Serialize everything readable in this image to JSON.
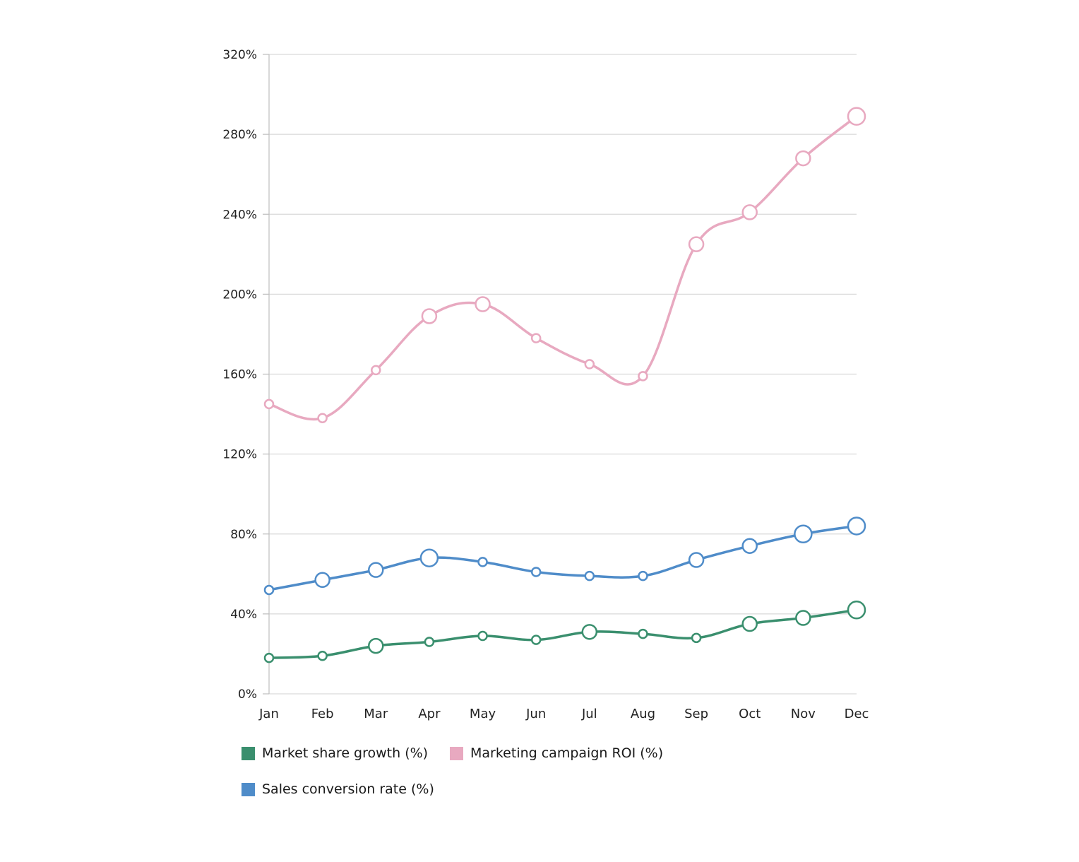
{
  "chart_data": {
    "type": "line",
    "title": "",
    "xlabel": "",
    "ylabel": "",
    "categories": [
      "Jan",
      "Feb",
      "Mar",
      "Apr",
      "May",
      "Jun",
      "Jul",
      "Aug",
      "Sep",
      "Oct",
      "Nov",
      "Dec"
    ],
    "ylim": [
      0,
      320
    ],
    "yticks": [
      0,
      40,
      80,
      120,
      160,
      200,
      240,
      280,
      320
    ],
    "ytick_labels": [
      "0%",
      "40%",
      "80%",
      "120%",
      "160%",
      "200%",
      "240%",
      "280%",
      "320%"
    ],
    "grid": true,
    "legend_position": "bottom-left",
    "series": [
      {
        "name": "Market share growth (%)",
        "color": "#3a8f6e",
        "values": [
          18,
          19,
          24,
          26,
          29,
          27,
          31,
          30,
          28,
          35,
          38,
          42
        ],
        "marker_emphasis": [
          0,
          0,
          1,
          0,
          0,
          0,
          1,
          0,
          0,
          1,
          1,
          2
        ]
      },
      {
        "name": "Marketing campaign ROI (%)",
        "color": "#e8a9c0",
        "values": [
          145,
          138,
          162,
          189,
          195,
          178,
          165,
          159,
          225,
          241,
          268,
          289
        ],
        "marker_emphasis": [
          0,
          0,
          0,
          1,
          1,
          0,
          0,
          0,
          1,
          1,
          1,
          2
        ]
      },
      {
        "name": "Sales conversion rate (%)",
        "color": "#4f8cc9",
        "values": [
          52,
          57,
          62,
          68,
          66,
          61,
          59,
          59,
          67,
          74,
          80,
          84
        ],
        "marker_emphasis": [
          0,
          1,
          1,
          2,
          0,
          0,
          0,
          0,
          1,
          1,
          2,
          2
        ]
      }
    ]
  },
  "legend": {
    "items": [
      {
        "label": "Market share growth (%)",
        "color": "#3a8f6e"
      },
      {
        "label": "Marketing campaign ROI (%)",
        "color": "#e8a9c0"
      },
      {
        "label": "Sales conversion rate (%)",
        "color": "#4f8cc9"
      }
    ]
  }
}
